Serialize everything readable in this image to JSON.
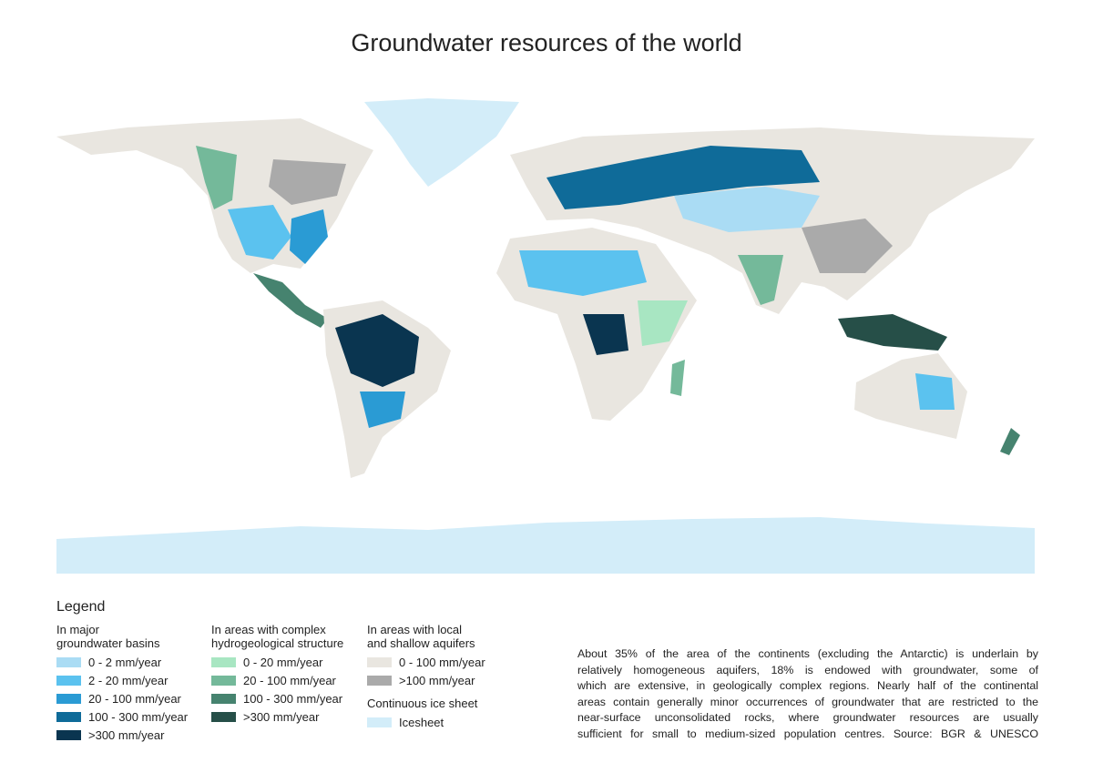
{
  "title": "Groundwater resources of the world",
  "legend": {
    "title": "Legend",
    "groups": [
      {
        "heading": [
          "In major",
          "groundwater basins"
        ],
        "items": [
          {
            "label": "0 - 2 mm/year",
            "color": "#aadcf4"
          },
          {
            "label": "2 - 20 mm/year",
            "color": "#5bc2ef"
          },
          {
            "label": "20 - 100 mm/year",
            "color": "#2a9bd4"
          },
          {
            "label": "100 - 300 mm/year",
            "color": "#0f6b99"
          },
          {
            "label": ">300 mm/year",
            "color": "#0a3550"
          }
        ]
      },
      {
        "heading": [
          "In areas with complex",
          "hydrogeological structure"
        ],
        "items": [
          {
            "label": "0 - 20 mm/year",
            "color": "#a8e6c2"
          },
          {
            "label": "20 - 100 mm/year",
            "color": "#74b99a"
          },
          {
            "label": "100 - 300 mm/year",
            "color": "#46836f"
          },
          {
            "label": ">300 mm/year",
            "color": "#264f48"
          }
        ]
      },
      {
        "heading": [
          "In areas with local",
          "and shallow aquifers"
        ],
        "items": [
          {
            "label": "0 - 100 mm/year",
            "color": "#e9e6e0"
          },
          {
            "label": ">100 mm/year",
            "color": "#aaaaaa"
          }
        ]
      },
      {
        "heading": [
          "Continuous ice sheet"
        ],
        "items": [
          {
            "label": "Icesheet",
            "color": "#d3edf9"
          }
        ]
      }
    ]
  },
  "description": [
    "About 35% of the area of the continents (excluding the Antarctic) is underlain by",
    "relatively homogeneous aquifers, 18% is endowed with groundwater, some of",
    "which are extensive, in geologically complex regions. Nearly half of the continental",
    "areas contain generally minor occurrences of groundwater that are restricted to the",
    "near-surface unconsolidated rocks, where groundwater resources are usually",
    "sufficient for small to medium-sized population centres. Source: BGR & UNESCO"
  ]
}
